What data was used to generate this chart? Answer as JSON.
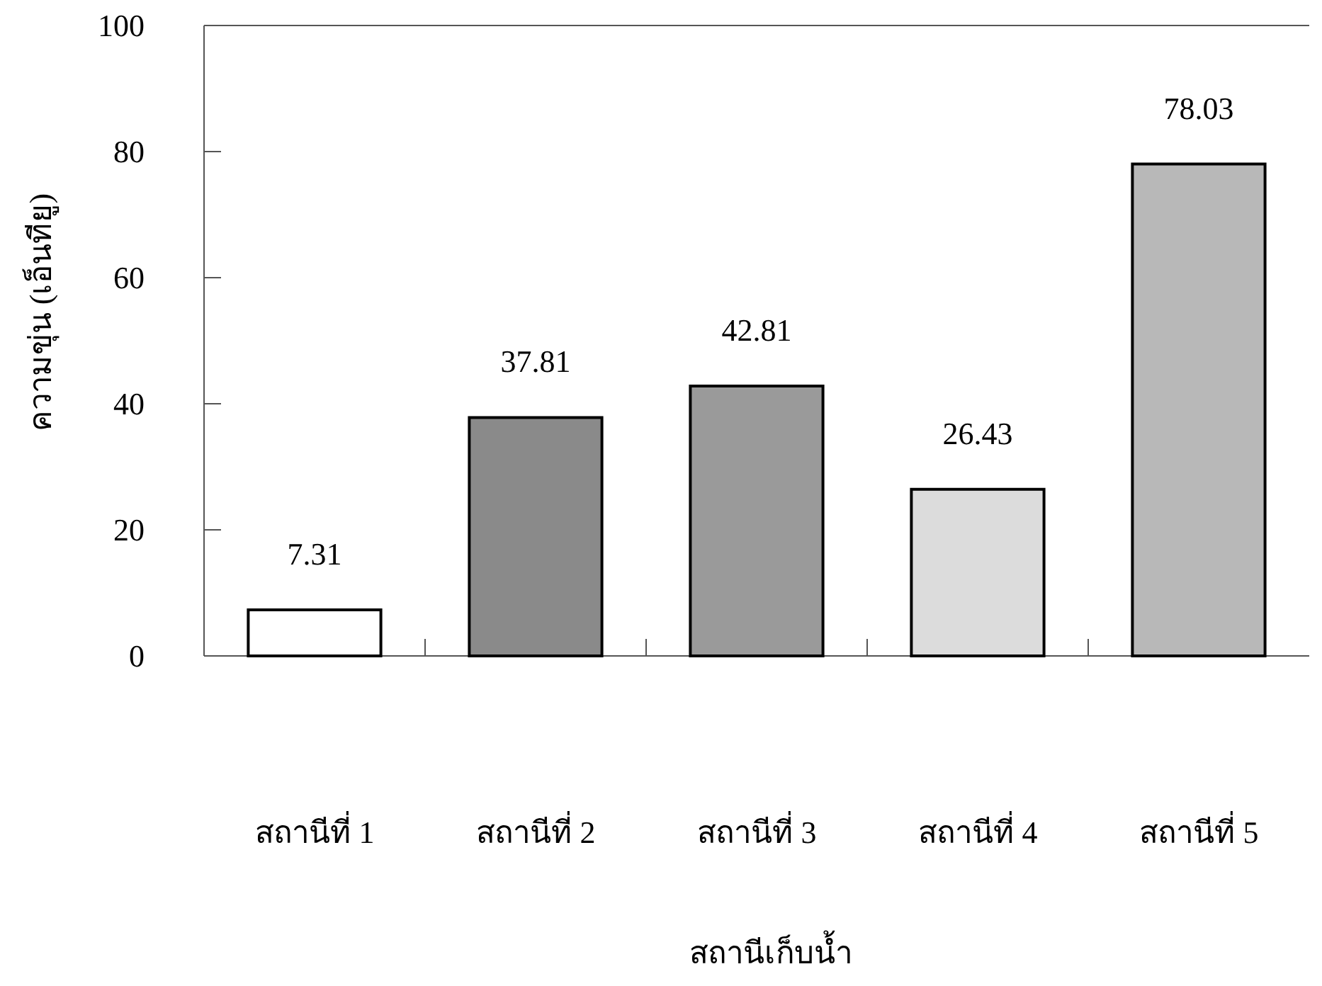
{
  "chart_data": {
    "type": "bar",
    "xlabel": "สถานีเก็บน้ำ",
    "ylabel": "ความขุ่น (เอ็นทียู)",
    "categories": [
      "สถานีที่ 1",
      "สถานีที่ 2",
      "สถานีที่ 3",
      "สถานีที่ 4",
      "สถานีที่ 5"
    ],
    "values": [
      7.31,
      37.81,
      42.81,
      26.43,
      78.03
    ],
    "colors": [
      "#ffffff",
      "#8a8a8a",
      "#9a9a9a",
      "#dcdcdc",
      "#b8b8b8"
    ],
    "ylim": [
      0,
      100
    ],
    "yticks": [
      0,
      20,
      40,
      60,
      80,
      100
    ],
    "data_labels": true
  }
}
